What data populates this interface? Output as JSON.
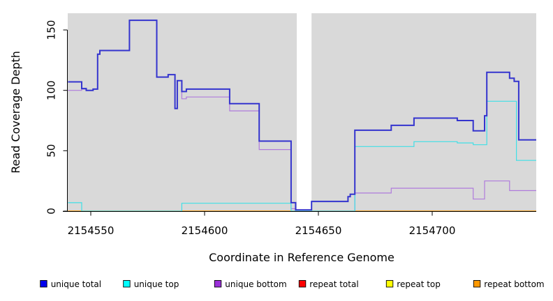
{
  "chart_data": {
    "type": "line",
    "subtype": "step-after-coverage",
    "title": "",
    "xlabel": "Coordinate in Reference Genome",
    "ylabel": "Read Coverage Depth",
    "xlim": [
      2154540,
      2154746
    ],
    "ylim": [
      0,
      164
    ],
    "xticks": [
      2154550,
      2154600,
      2154650,
      2154700
    ],
    "yticks": [
      0,
      50,
      100,
      150
    ],
    "grid": false,
    "panel_bg": "#D9D9D9",
    "gap_region": [
      2154640.5,
      2154647
    ],
    "gap_color": "#FFFFFF",
    "series": [
      {
        "name": "repeat top",
        "color": "#FFFF00",
        "lw": 1,
        "points": [
          [
            2154540,
            0
          ],
          [
            2154746,
            0
          ]
        ]
      },
      {
        "name": "repeat total",
        "color": "#EE0000",
        "lw": 1,
        "points": [
          [
            2154540,
            0
          ],
          [
            2154746,
            0
          ]
        ]
      },
      {
        "name": "repeat bottom",
        "color": "#FF9900",
        "lw": 1.6,
        "points": [
          [
            2154540,
            0
          ],
          [
            2154746,
            0
          ]
        ]
      },
      {
        "name": "unique bottom",
        "color": "#AF7BDC",
        "lw": 1.2,
        "points": [
          [
            2154540,
            100
          ],
          [
            2154546,
            101
          ],
          [
            2154548,
            100
          ],
          [
            2154551,
            101
          ],
          [
            2154553,
            130
          ],
          [
            2154554,
            133
          ],
          [
            2154567,
            158
          ],
          [
            2154579,
            111
          ],
          [
            2154584,
            113
          ],
          [
            2154587,
            85
          ],
          [
            2154588,
            108
          ],
          [
            2154590,
            93
          ],
          [
            2154592,
            94.5
          ],
          [
            2154611,
            83
          ],
          [
            2154624,
            51
          ],
          [
            2154638,
            2
          ],
          [
            2154640,
            0
          ],
          [
            2154666,
            15
          ],
          [
            2154682,
            19
          ],
          [
            2154718,
            10
          ],
          [
            2154723,
            25
          ],
          [
            2154734,
            17
          ],
          [
            2154746,
            17
          ]
        ]
      },
      {
        "name": "unique top",
        "color": "#3FE0E6",
        "lw": 1.2,
        "points": [
          [
            2154540,
            7
          ],
          [
            2154546,
            0
          ],
          [
            2154590,
            6.5
          ],
          [
            2154638,
            0
          ],
          [
            2154666,
            53.5
          ],
          [
            2154692,
            57.5
          ],
          [
            2154711,
            56.5
          ],
          [
            2154718,
            55
          ],
          [
            2154724,
            91
          ],
          [
            2154737,
            42
          ],
          [
            2154746,
            42
          ]
        ]
      },
      {
        "name": "unique total",
        "color": "#3434CE",
        "lw": 2,
        "points": [
          [
            2154540,
            107
          ],
          [
            2154546,
            101.5
          ],
          [
            2154548,
            100
          ],
          [
            2154551,
            101
          ],
          [
            2154553,
            130
          ],
          [
            2154554,
            133
          ],
          [
            2154567,
            158
          ],
          [
            2154579,
            111
          ],
          [
            2154584,
            113
          ],
          [
            2154587,
            85
          ],
          [
            2154588,
            108
          ],
          [
            2154590,
            99
          ],
          [
            2154592,
            101
          ],
          [
            2154611,
            89
          ],
          [
            2154624,
            58
          ],
          [
            2154638,
            7
          ],
          [
            2154640,
            1
          ],
          [
            2154647,
            8
          ],
          [
            2154663,
            12
          ],
          [
            2154664,
            14
          ],
          [
            2154666,
            67
          ],
          [
            2154682,
            71
          ],
          [
            2154692,
            77
          ],
          [
            2154711,
            75
          ],
          [
            2154718,
            66.5
          ],
          [
            2154723,
            79
          ],
          [
            2154724,
            115
          ],
          [
            2154734,
            110
          ],
          [
            2154736,
            107.5
          ],
          [
            2154738,
            59
          ],
          [
            2154746,
            59
          ]
        ]
      }
    ],
    "legend": {
      "position": "bottom",
      "items": [
        {
          "label": "unique total",
          "color": "#0000EE"
        },
        {
          "label": "unique top",
          "color": "#00FFFF"
        },
        {
          "label": "unique bottom",
          "color": "#9B30D9"
        },
        {
          "label": "repeat total",
          "color": "#FF0000"
        },
        {
          "label": "repeat top",
          "color": "#FFFF00"
        },
        {
          "label": "repeat bottom",
          "color": "#FF9900"
        }
      ]
    }
  }
}
